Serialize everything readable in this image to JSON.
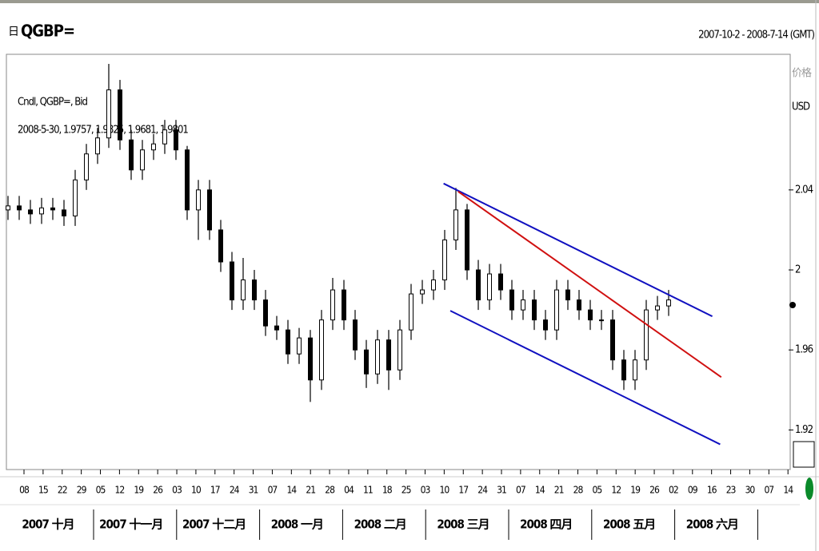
{
  "chart_data": {
    "type": "candlestick",
    "title": "QGBP=",
    "date_range": "2007-10-2 - 2008-7-14 (GMT)",
    "legend_lines": [
      "Cndl, QGBP=, Bid",
      "2008-5-30, 1.9757, 1.9825, 1.9681, 1.9801"
    ],
    "y_axis_label": "价格",
    "y_axis_unit": "USD",
    "ylim": [
      1.901,
      2.107
    ],
    "yticks": [
      2.04,
      2,
      1.96,
      1.92
    ],
    "x_tick_labels": [
      "08",
      "15",
      "22",
      "29",
      "05",
      "12",
      "19",
      "26",
      "03",
      "10",
      "17",
      "24",
      "31",
      "07",
      "14",
      "21",
      "28",
      "04",
      "11",
      "18",
      "25",
      "03",
      "10",
      "17",
      "24",
      "31",
      "07",
      "14",
      "21",
      "28",
      "05",
      "12",
      "19",
      "26",
      "02",
      "09",
      "16",
      "23",
      "30",
      "07",
      "14"
    ],
    "month_labels": [
      "2007 十月",
      "2007 十一月",
      "2007 十二月",
      "2008 一月",
      "2008 二月",
      "2008 三月",
      "2008 四月",
      "2008 五月",
      "2008 六月"
    ],
    "open": [
      2.03,
      2.032,
      2.03,
      2.028,
      2.031,
      2.03,
      2.027,
      2.045,
      2.058,
      2.066,
      2.09,
      2.065,
      2.05,
      2.06,
      2.063,
      2.07,
      2.06,
      2.03,
      2.04,
      2.02,
      2.004,
      1.985,
      1.995,
      1.985,
      1.972,
      1.97,
      1.958,
      1.966,
      1.945,
      1.975,
      1.99,
      1.975,
      1.96,
      1.948,
      1.965,
      1.95,
      1.97,
      1.988,
      1.99,
      1.995,
      2.015,
      2.03,
      2.0,
      1.985,
      1.998,
      1.99,
      1.98,
      1.985,
      1.975,
      1.97,
      1.99,
      1.985,
      1.98,
      1.975,
      1.975,
      1.955,
      1.945,
      1.955,
      1.98,
      1.982
    ],
    "high": [
      2.037,
      2.037,
      2.035,
      2.036,
      2.036,
      2.035,
      2.05,
      2.063,
      2.071,
      2.103,
      2.095,
      2.07,
      2.065,
      2.068,
      2.075,
      2.075,
      2.062,
      2.045,
      2.045,
      2.025,
      2.009,
      2.006,
      2.0,
      1.99,
      1.977,
      1.975,
      1.971,
      1.97,
      1.98,
      1.996,
      1.995,
      1.98,
      1.965,
      1.97,
      1.97,
      1.975,
      1.993,
      1.995,
      2.0,
      2.02,
      2.041,
      2.033,
      2.005,
      2.003,
      2.003,
      1.995,
      1.99,
      1.99,
      1.98,
      1.995,
      1.995,
      1.99,
      1.985,
      1.98,
      1.98,
      1.96,
      1.96,
      1.985,
      1.987,
      1.99
    ],
    "low": [
      2.025,
      2.025,
      2.023,
      2.023,
      2.025,
      2.022,
      2.022,
      2.04,
      2.053,
      2.061,
      2.06,
      2.045,
      2.045,
      2.055,
      2.058,
      2.055,
      2.025,
      2.015,
      2.015,
      1.999,
      1.98,
      1.98,
      1.98,
      1.967,
      1.965,
      1.953,
      1.953,
      1.934,
      1.94,
      1.97,
      1.97,
      1.955,
      1.941,
      1.943,
      1.94,
      1.945,
      1.965,
      1.983,
      1.985,
      1.99,
      2.01,
      1.995,
      1.98,
      1.98,
      1.985,
      1.975,
      1.975,
      1.97,
      1.965,
      1.965,
      1.98,
      1.975,
      1.97,
      1.97,
      1.95,
      1.94,
      1.94,
      1.95,
      1.975,
      1.977
    ],
    "close": [
      2.032,
      2.03,
      2.028,
      2.031,
      2.03,
      2.027,
      2.045,
      2.058,
      2.066,
      2.09,
      2.065,
      2.05,
      2.06,
      2.063,
      2.07,
      2.06,
      2.03,
      2.04,
      2.02,
      2.004,
      1.985,
      1.995,
      1.985,
      1.972,
      1.97,
      1.958,
      1.966,
      1.945,
      1.975,
      1.99,
      1.975,
      1.96,
      1.948,
      1.965,
      1.95,
      1.97,
      1.988,
      1.99,
      1.995,
      2.015,
      2.03,
      2.0,
      1.985,
      1.998,
      1.99,
      1.98,
      1.985,
      1.975,
      1.97,
      1.99,
      1.985,
      1.98,
      1.975,
      1.975,
      1.955,
      1.945,
      1.955,
      1.98,
      1.982,
      1.985
    ],
    "trendlines": [
      {
        "color": "#1010c0",
        "x": [
          38.9,
          62.9
        ],
        "y": [
          2.0432,
          1.9768
        ]
      },
      {
        "color": "#1010c0",
        "x": [
          39.5,
          63.6
        ],
        "y": [
          1.9796,
          1.9128
        ]
      },
      {
        "color": "#d01010",
        "x": [
          40.2,
          63.7
        ],
        "y": [
          2.0392,
          1.9464
        ]
      }
    ]
  }
}
